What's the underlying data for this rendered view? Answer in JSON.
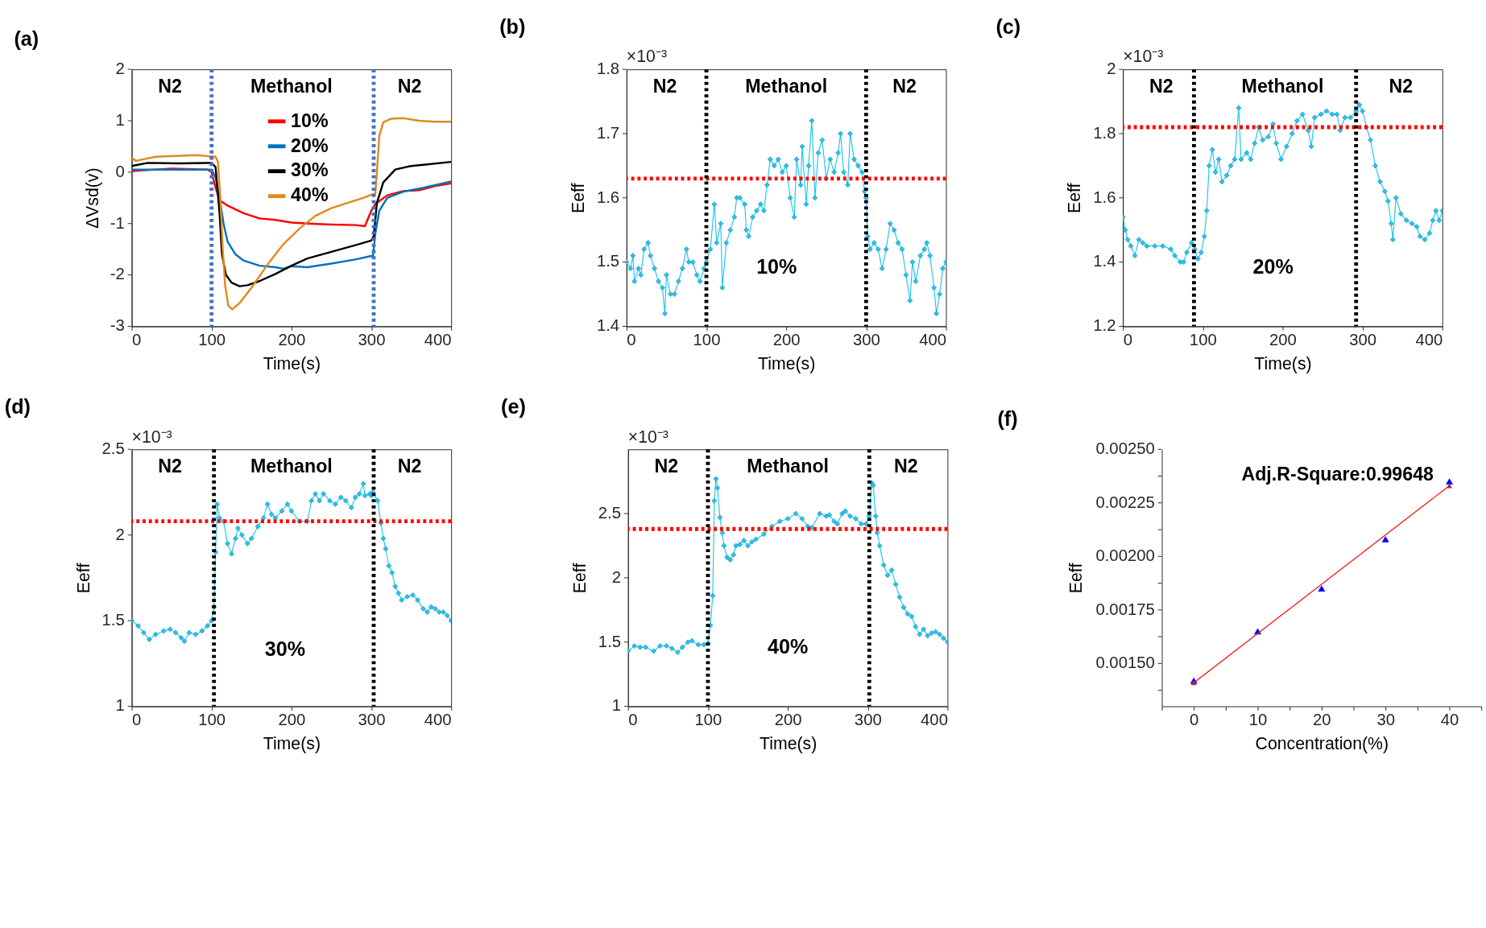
{
  "chart_data": [
    {
      "type": "line",
      "title": "(a)",
      "xlabel": "Time(s)",
      "ylabel": "ΔVsd(v)",
      "xlim": [
        0,
        400
      ],
      "ylim": [
        -3,
        2
      ],
      "xticks": [
        0,
        100,
        200,
        300,
        400
      ],
      "yticks": [
        -3,
        -2,
        -1,
        0,
        1,
        2
      ],
      "legend": "top",
      "series": [
        {
          "name": "10%",
          "color": "#ff0000",
          "x": [
            0,
            50,
            95,
            100,
            105,
            110,
            120,
            140,
            160,
            180,
            200,
            220,
            250,
            280,
            292,
            300,
            305,
            320,
            340,
            360,
            380,
            400
          ],
          "values": [
            0.02,
            0.07,
            0.05,
            0.0,
            -0.3,
            -0.55,
            -0.65,
            -0.8,
            -0.9,
            -0.93,
            -0.98,
            -1.0,
            -1.02,
            -1.03,
            -1.05,
            -0.75,
            -0.62,
            -0.45,
            -0.37,
            -0.35,
            -0.27,
            -0.22
          ]
        },
        {
          "name": "20%",
          "color": "#0072bd",
          "x": [
            0,
            50,
            100,
            105,
            110,
            115,
            120,
            130,
            140,
            160,
            180,
            190,
            200,
            220,
            250,
            280,
            300,
            302,
            305,
            310,
            320,
            340,
            360,
            380,
            400
          ],
          "values": [
            0.05,
            0.05,
            0.05,
            -0.1,
            -0.5,
            -1.0,
            -1.35,
            -1.6,
            -1.72,
            -1.82,
            -1.85,
            -1.88,
            -1.83,
            -1.85,
            -1.78,
            -1.7,
            -1.63,
            -1.65,
            -1.2,
            -0.75,
            -0.5,
            -0.38,
            -0.32,
            -0.25,
            -0.18
          ]
        },
        {
          "name": "30%",
          "color": "#000000",
          "x": [
            0,
            20,
            60,
            100,
            105,
            110,
            113,
            118,
            125,
            135,
            145,
            160,
            180,
            200,
            220,
            250,
            280,
            300,
            303,
            307,
            315,
            330,
            350,
            370,
            400
          ],
          "values": [
            0.12,
            0.18,
            0.17,
            0.18,
            0.1,
            -0.8,
            -1.6,
            -2.0,
            -2.15,
            -2.22,
            -2.2,
            -2.12,
            -1.98,
            -1.82,
            -1.68,
            -1.55,
            -1.42,
            -1.33,
            -1.25,
            -0.6,
            -0.2,
            0.05,
            0.12,
            0.15,
            0.2
          ]
        },
        {
          "name": "40%",
          "color": "#e08a1e",
          "x": [
            0,
            5,
            30,
            80,
            105,
            108,
            111,
            114,
            117,
            121,
            126,
            135,
            150,
            170,
            190,
            210,
            230,
            250,
            270,
            290,
            300,
            305,
            307,
            310,
            315,
            325,
            340,
            360,
            380,
            400
          ],
          "values": [
            0.28,
            0.22,
            0.3,
            0.33,
            0.3,
            0.2,
            -0.5,
            -1.5,
            -2.2,
            -2.6,
            -2.67,
            -2.55,
            -2.25,
            -1.8,
            -1.4,
            -1.1,
            -0.85,
            -0.7,
            -0.6,
            -0.5,
            -0.44,
            -0.42,
            0.0,
            0.7,
            0.97,
            1.04,
            1.05,
            1.0,
            0.98,
            0.98
          ]
        }
      ],
      "ref_lines": [
        {
          "axis": "x",
          "value": 100,
          "color": "#4472c4",
          "line_style": "dotted"
        },
        {
          "axis": "x",
          "value": 303,
          "color": "#4472c4",
          "line_style": "dotted"
        }
      ],
      "annotations": [
        "N2",
        "Methanol",
        "N2"
      ]
    },
    {
      "type": "line",
      "title": "(b)",
      "xlabel": "Time(s)",
      "ylabel": "Eeff",
      "xlim": [
        0,
        400
      ],
      "ylim": [
        1.4,
        1.8
      ],
      "xticks": [
        0,
        100,
        200,
        300,
        400
      ],
      "yticks": [
        1.4,
        1.5,
        1.6,
        1.7,
        1.8
      ],
      "marker": "diamond",
      "series": [
        {
          "color": "#1ec8ea",
          "x": [
            0,
            5,
            8,
            10,
            15,
            18,
            22,
            27,
            30,
            35,
            40,
            45,
            48,
            50,
            55,
            60,
            65,
            70,
            75,
            78,
            83,
            88,
            92,
            97,
            100,
            105,
            110,
            113,
            118,
            120,
            125,
            130,
            135,
            138,
            142,
            148,
            150,
            153,
            158,
            163,
            168,
            172,
            176,
            180,
            185,
            190,
            195,
            200,
            205,
            210,
            213,
            218,
            220,
            225,
            228,
            232,
            236,
            240,
            245,
            250,
            255,
            260,
            265,
            268,
            272,
            277,
            280,
            285,
            290,
            295,
            298,
            300,
            302,
            305,
            310,
            315,
            320,
            325,
            330,
            335,
            340,
            345,
            350,
            355,
            358,
            362,
            368,
            373,
            376,
            380,
            385,
            388,
            392,
            396,
            400
          ],
          "values": [
            1.5,
            1.49,
            1.51,
            1.47,
            1.49,
            1.48,
            1.52,
            1.53,
            1.51,
            1.49,
            1.47,
            1.46,
            1.42,
            1.48,
            1.45,
            1.45,
            1.47,
            1.49,
            1.52,
            1.5,
            1.5,
            1.48,
            1.47,
            1.49,
            1.5,
            1.52,
            1.59,
            1.53,
            1.56,
            1.46,
            1.53,
            1.55,
            1.57,
            1.6,
            1.6,
            1.59,
            1.55,
            1.54,
            1.57,
            1.58,
            1.59,
            1.58,
            1.62,
            1.66,
            1.65,
            1.66,
            1.64,
            1.65,
            1.6,
            1.57,
            1.66,
            1.62,
            1.68,
            1.59,
            1.65,
            1.72,
            1.6,
            1.67,
            1.69,
            1.63,
            1.66,
            1.64,
            1.67,
            1.7,
            1.64,
            1.62,
            1.7,
            1.66,
            1.65,
            1.64,
            1.61,
            1.6,
            1.54,
            1.52,
            1.53,
            1.52,
            1.49,
            1.52,
            1.56,
            1.55,
            1.53,
            1.52,
            1.48,
            1.44,
            1.5,
            1.47,
            1.51,
            1.52,
            1.53,
            1.51,
            1.46,
            1.42,
            1.45,
            1.49,
            1.5
          ]
        }
      ],
      "ref_lines": [
        {
          "axis": "y",
          "value": 1.63,
          "color": "#ff0000",
          "line_style": "dotted"
        },
        {
          "axis": "x",
          "value": 100,
          "color": "#000000",
          "line_style": "dotted"
        },
        {
          "axis": "x",
          "value": 300,
          "color": "#000000",
          "line_style": "dotted"
        }
      ],
      "annotations": [
        "×10⁻³",
        "N2",
        "Methanol",
        "N2",
        "10%"
      ]
    },
    {
      "type": "line",
      "title": "(c)",
      "xlabel": "Time(s)",
      "ylabel": "Eeff",
      "xlim": [
        0,
        400
      ],
      "ylim": [
        1.2,
        2
      ],
      "xticks": [
        0,
        100,
        200,
        300,
        400
      ],
      "yticks": [
        1.2,
        1.4,
        1.6,
        1.8,
        2
      ],
      "marker": "diamond",
      "series": [
        {
          "color": "#1ec8ea",
          "x": [
            0,
            3,
            6,
            10,
            15,
            20,
            25,
            30,
            40,
            50,
            60,
            65,
            72,
            76,
            80,
            86,
            90,
            94,
            98,
            102,
            105,
            108,
            112,
            116,
            120,
            124,
            130,
            135,
            140,
            145,
            148,
            155,
            160,
            165,
            170,
            175,
            182,
            188,
            192,
            198,
            205,
            212,
            218,
            225,
            232,
            236,
            240,
            248,
            255,
            262,
            268,
            272,
            278,
            285,
            292,
            296,
            300,
            305,
            310,
            316,
            322,
            328,
            332,
            336,
            338,
            342,
            348,
            355,
            362,
            368,
            372,
            378,
            384,
            388,
            392,
            396,
            400
          ],
          "values": [
            1.54,
            1.5,
            1.47,
            1.45,
            1.42,
            1.47,
            1.46,
            1.45,
            1.45,
            1.45,
            1.44,
            1.42,
            1.4,
            1.4,
            1.43,
            1.46,
            1.44,
            1.41,
            1.43,
            1.48,
            1.56,
            1.7,
            1.75,
            1.68,
            1.72,
            1.65,
            1.67,
            1.7,
            1.72,
            1.88,
            1.72,
            1.74,
            1.72,
            1.77,
            1.82,
            1.78,
            1.79,
            1.83,
            1.77,
            1.72,
            1.76,
            1.8,
            1.84,
            1.86,
            1.81,
            1.76,
            1.85,
            1.86,
            1.87,
            1.86,
            1.86,
            1.81,
            1.85,
            1.85,
            1.87,
            1.89,
            1.87,
            1.82,
            1.78,
            1.7,
            1.65,
            1.62,
            1.59,
            1.52,
            1.47,
            1.6,
            1.55,
            1.53,
            1.52,
            1.51,
            1.48,
            1.47,
            1.49,
            1.53,
            1.56,
            1.53,
            1.56
          ]
        }
      ],
      "ref_lines": [
        {
          "axis": "y",
          "value": 1.82,
          "color": "#ff0000",
          "line_style": "dotted"
        },
        {
          "axis": "x",
          "value": 89,
          "color": "#000000",
          "line_style": "dotted"
        },
        {
          "axis": "x",
          "value": 292,
          "color": "#000000",
          "line_style": "dotted"
        }
      ],
      "annotations": [
        "×10⁻³",
        "N2",
        "Methanol",
        "N2",
        "20%"
      ]
    },
    {
      "type": "line",
      "title": "(d)",
      "xlabel": "Time(s)",
      "ylabel": "Eeff",
      "xlim": [
        0,
        400
      ],
      "ylim": [
        1,
        2.5
      ],
      "xticks": [
        0,
        100,
        200,
        300,
        400
      ],
      "yticks": [
        1,
        1.5,
        2,
        2.5
      ],
      "marker": "diamond",
      "series": [
        {
          "color": "#1ec8ea",
          "x": [
            0,
            8,
            15,
            22,
            30,
            40,
            48,
            55,
            62,
            66,
            72,
            80,
            88,
            95,
            100,
            103,
            105,
            107,
            110,
            115,
            120,
            125,
            130,
            133,
            138,
            145,
            150,
            158,
            165,
            170,
            175,
            180,
            188,
            195,
            200,
            210,
            220,
            225,
            230,
            235,
            240,
            248,
            255,
            262,
            268,
            275,
            280,
            285,
            290,
            292,
            298,
            300,
            302,
            308,
            312,
            315,
            318,
            322,
            326,
            330,
            334,
            338,
            345,
            352,
            358,
            365,
            370,
            375,
            380,
            385,
            390,
            395,
            400
          ],
          "values": [
            1.5,
            1.47,
            1.43,
            1.39,
            1.42,
            1.44,
            1.45,
            1.43,
            1.4,
            1.38,
            1.43,
            1.42,
            1.44,
            1.47,
            1.5,
            1.58,
            1.9,
            2.18,
            2.1,
            2.08,
            1.95,
            1.89,
            1.98,
            2.04,
            2.0,
            1.95,
            1.98,
            2.05,
            2.1,
            2.18,
            2.12,
            2.1,
            2.14,
            2.18,
            2.14,
            2.08,
            2.08,
            2.2,
            2.24,
            2.2,
            2.24,
            2.2,
            2.18,
            2.22,
            2.2,
            2.16,
            2.22,
            2.24,
            2.3,
            2.23,
            2.24,
            2.23,
            2.25,
            2.2,
            2.07,
            1.98,
            1.92,
            1.82,
            1.78,
            1.7,
            1.66,
            1.62,
            1.64,
            1.65,
            1.62,
            1.57,
            1.55,
            1.58,
            1.57,
            1.55,
            1.55,
            1.53,
            1.5
          ]
        }
      ],
      "ref_lines": [
        {
          "axis": "y",
          "value": 2.08,
          "color": "#ff0000",
          "line_style": "dotted"
        },
        {
          "axis": "x",
          "value": 103,
          "color": "#000000",
          "line_style": "dotted"
        },
        {
          "axis": "x",
          "value": 303,
          "color": "#000000",
          "line_style": "dotted"
        }
      ],
      "annotations": [
        "×10⁻³",
        "N2",
        "Methanol",
        "N2",
        "30%"
      ]
    },
    {
      "type": "line",
      "title": "(e)",
      "xlabel": "Time(s)",
      "ylabel": "Eeff",
      "xlim": [
        0,
        400
      ],
      "ylim": [
        1,
        3
      ],
      "xticks": [
        0,
        100,
        200,
        300,
        400
      ],
      "yticks": [
        1,
        1.5,
        2,
        2.5
      ],
      "marker": "diamond",
      "series": [
        {
          "color": "#1ec8ea",
          "x": [
            0,
            8,
            15,
            22,
            32,
            40,
            48,
            55,
            62,
            68,
            75,
            80,
            88,
            95,
            100,
            103,
            106,
            108,
            110,
            112,
            115,
            118,
            120,
            124,
            128,
            132,
            135,
            140,
            145,
            150,
            155,
            160,
            170,
            180,
            190,
            200,
            210,
            218,
            225,
            230,
            240,
            248,
            252,
            258,
            262,
            268,
            272,
            278,
            285,
            292,
            298,
            302,
            305,
            307,
            310,
            312,
            315,
            320,
            325,
            330,
            335,
            340,
            345,
            350,
            355,
            360,
            365,
            370,
            375,
            380,
            385,
            390,
            395,
            400
          ],
          "values": [
            1.43,
            1.47,
            1.46,
            1.46,
            1.43,
            1.47,
            1.47,
            1.45,
            1.42,
            1.46,
            1.5,
            1.51,
            1.48,
            1.48,
            1.49,
            1.63,
            1.86,
            2.6,
            2.77,
            2.7,
            2.47,
            2.35,
            2.25,
            2.16,
            2.14,
            2.18,
            2.25,
            2.26,
            2.29,
            2.25,
            2.28,
            2.3,
            2.34,
            2.4,
            2.44,
            2.46,
            2.5,
            2.46,
            2.4,
            2.39,
            2.5,
            2.48,
            2.49,
            2.44,
            2.42,
            2.5,
            2.52,
            2.48,
            2.46,
            2.42,
            2.42,
            2.48,
            2.74,
            2.72,
            2.48,
            2.35,
            2.25,
            2.1,
            2.02,
            2.06,
            1.95,
            1.85,
            1.77,
            1.72,
            1.7,
            1.62,
            1.56,
            1.6,
            1.55,
            1.57,
            1.58,
            1.56,
            1.53,
            1.5
          ]
        }
      ],
      "ref_lines": [
        {
          "axis": "y",
          "value": 2.38,
          "color": "#ff0000",
          "line_style": "dotted"
        },
        {
          "axis": "x",
          "value": 100,
          "color": "#000000",
          "line_style": "dotted"
        },
        {
          "axis": "x",
          "value": 302,
          "color": "#000000",
          "line_style": "dotted"
        }
      ],
      "annotations": [
        "×10⁻³",
        "N2",
        "Methanol",
        "N2",
        "40%"
      ]
    },
    {
      "type": "scatter",
      "title": "(f)",
      "xlabel": "Concentration(%)",
      "ylabel": "Eeff",
      "xlim": [
        -5,
        45
      ],
      "ylim": [
        0.0013,
        0.0025
      ],
      "xticks": [
        {
          "value": -5,
          "label": null
        },
        0,
        {
          "value": 5,
          "label": null
        },
        10,
        {
          "value": 15,
          "label": null
        },
        20,
        {
          "value": 25,
          "label": null
        },
        30,
        {
          "value": 35,
          "label": null
        },
        40,
        {
          "value": 45,
          "label": null
        }
      ],
      "yticks": [
        {
          "value": 0.001375,
          "label": null
        },
        {
          "value": 0.0015,
          "label": "0.00150"
        },
        {
          "value": 0.001625,
          "label": null
        },
        {
          "value": 0.00175,
          "label": "0.00175"
        },
        {
          "value": 0.001875,
          "label": null
        },
        {
          "value": 0.002,
          "label": "0.00200"
        },
        {
          "value": 0.002125,
          "label": null
        },
        {
          "value": 0.00225,
          "label": "0.00225"
        },
        {
          "value": 0.002375,
          "label": null
        },
        {
          "value": 0.0025,
          "label": "0.00250"
        }
      ],
      "marker": "triangle",
      "series": [
        {
          "color": "#0000ff",
          "x": [
            0,
            10,
            20,
            30,
            40
          ],
          "values": [
            0.00142,
            0.00165,
            0.00185,
            0.00208,
            0.00235
          ]
        },
        {
          "type": "line",
          "color": "#ff0000",
          "x": [
            0,
            40
          ],
          "values": [
            0.00141,
            0.00233
          ]
        }
      ],
      "annotations": [
        "Adj.R-Square:0.99648"
      ]
    }
  ]
}
